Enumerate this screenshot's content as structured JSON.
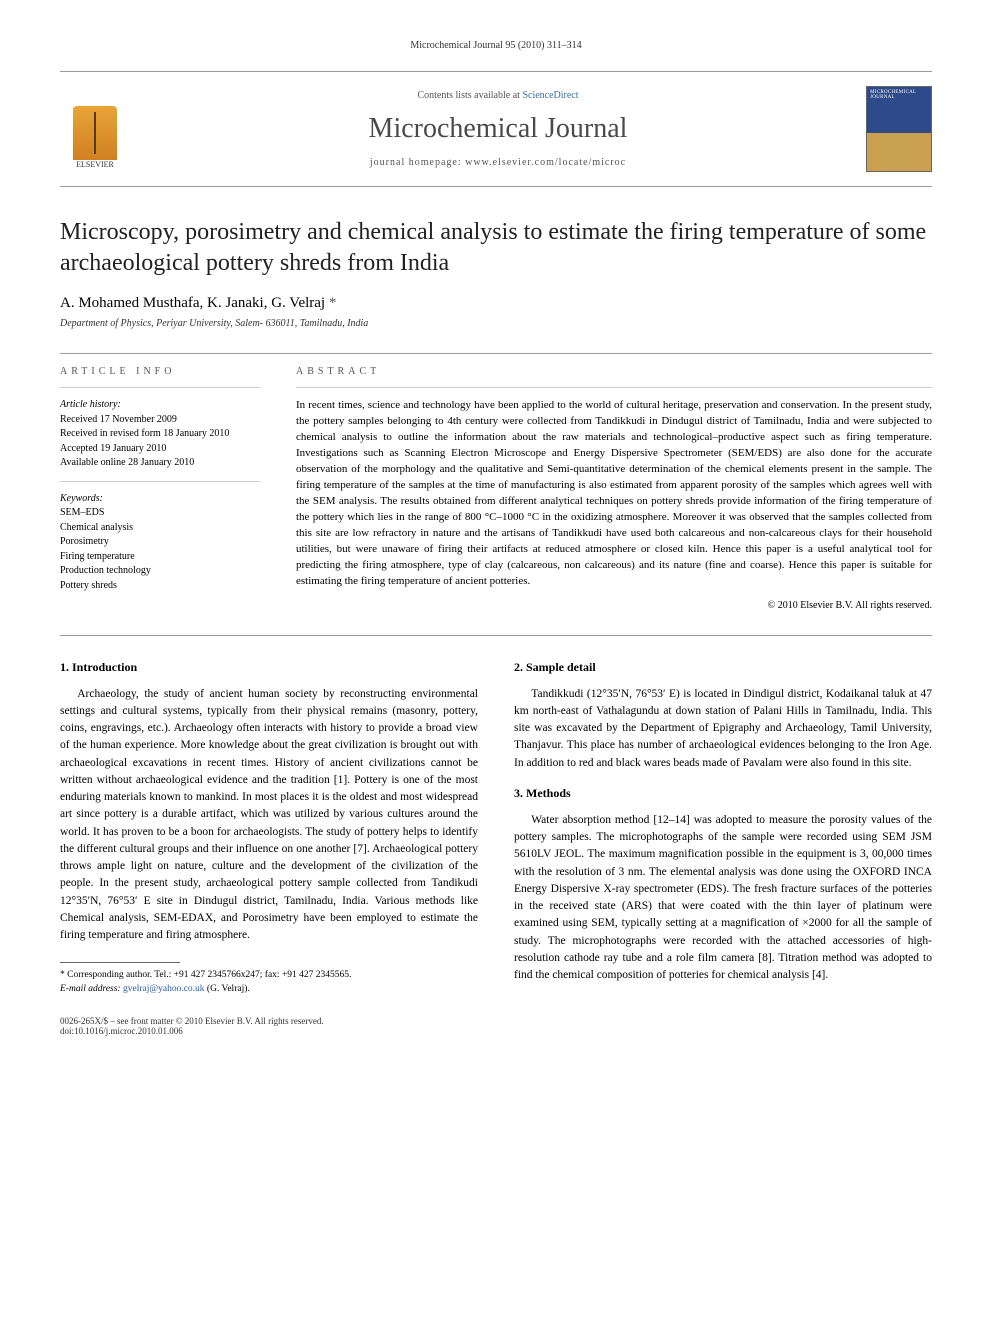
{
  "running_head": "Microchemical Journal 95 (2010) 311–314",
  "masthead": {
    "publisher": "ELSEVIER",
    "contents_prefix": "Contents lists available at ",
    "contents_link": "ScienceDirect",
    "journal": "Microchemical Journal",
    "homepage_prefix": "journal homepage: ",
    "homepage_url": "www.elsevier.com/locate/microc",
    "cover_label": "MICROCHEMICAL JOURNAL"
  },
  "article": {
    "title": "Microscopy, porosimetry and chemical analysis to estimate the firing temperature of some archaeological pottery shreds from India",
    "authors_line": "A. Mohamed Musthafa, K. Janaki, G. Velraj ",
    "corr_marker": "*",
    "affiliation": "Department of Physics, Periyar University, Salem- 636011, Tamilnadu, India"
  },
  "info": {
    "label": "article info",
    "history_head": "Article history:",
    "received": "Received 17 November 2009",
    "revised": "Received in revised form 18 January 2010",
    "accepted": "Accepted 19 January 2010",
    "online": "Available online 28 January 2010",
    "keywords_head": "Keywords:",
    "kw1": "SEM–EDS",
    "kw2": "Chemical analysis",
    "kw3": "Porosimetry",
    "kw4": "Firing temperature",
    "kw5": "Production technology",
    "kw6": "Pottery shreds"
  },
  "abstract": {
    "label": "abstract",
    "text": "In recent times, science and technology have been applied to the world of cultural heritage, preservation and conservation. In the present study, the pottery samples belonging to 4th century were collected from Tandikkudi in Dindugul district of Tamilnadu, India and were subjected to chemical analysis to outline the information about the raw materials and technological–productive aspect such as firing temperature. Investigations such as Scanning Electron Microscope and Energy Dispersive Spectrometer (SEM/EDS) are also done for the accurate observation of the morphology and the qualitative and Semi-quantitative determination of the chemical elements present in the sample. The firing temperature of the samples at the time of manufacturing is also estimated from apparent porosity of the samples which agrees well with the SEM analysis. The results obtained from different analytical techniques on pottery shreds provide information of the firing temperature of the pottery which lies in the range of 800 °C–1000 °C in the oxidizing atmosphere. Moreover it was observed that the samples collected from this site are low refractory in nature and the artisans of Tandikkudi have used both calcareous and non-calcareous clays for their household utilities, but were unaware of firing their artifacts at reduced atmosphere or closed kiln. Hence this paper is a useful analytical tool for predicting the firing atmosphere, type of clay (calcareous, non calcareous) and its nature (fine and coarse). Hence this paper is suitable for estimating the firing temperature of ancient potteries.",
    "copyright": "© 2010 Elsevier B.V. All rights reserved."
  },
  "sections": {
    "s1_head": "1. Introduction",
    "s1_p1": "Archaeology, the study of ancient human society by reconstructing environmental settings and cultural systems, typically from their physical remains (masonry, pottery, coins, engravings, etc.). Archaeology often interacts with history to provide a broad view of the human experience. More knowledge about the great civilization is brought out with archaeological excavations in recent times. History of ancient civilizations cannot be written without archaeological evidence and the tradition [1]. Pottery is one of the most enduring materials known to mankind. In most places it is the oldest and most widespread art since pottery is a durable artifact, which was utilized by various cultures around the world. It has proven to be a boon for archaeologists. The study of pottery helps to identify the different cultural groups and their influence on one another [7]. Archaeological pottery throws ample light on nature, culture and the development of the civilization of the people. In the present study, archaeological pottery sample collected from Tandikudi 12°35′N, 76°53′ E site in Dindugul district, Tamilnadu, India. Various methods like Chemical analysis, SEM-EDAX, and Porosimetry have been employed to estimate the firing temperature and firing atmosphere.",
    "s2_head": "2. Sample detail",
    "s2_p1": "Tandikkudi (12°35′N, 76°53′ E) is located in Dindigul district, Kodaikanal taluk at 47 km north-east of Vathalagundu at down station of Palani Hills in Tamilnadu, India. This site was excavated by the Department of Epigraphy and Archaeology, Tamil University, Thanjavur. This place has number of archaeological evidences belonging to the Iron Age. In addition to red and black wares beads made of Pavalam were also found in this site.",
    "s3_head": "3. Methods",
    "s3_p1": "Water absorption method [12–14] was adopted to measure the porosity values of the pottery samples. The microphotographs of the sample were recorded using SEM JSM 5610LV JEOL. The maximum magnification possible in the equipment is 3, 00,000 times with the resolution of 3 nm. The elemental analysis was done using the OXFORD INCA Energy Dispersive X-ray spectrometer (EDS). The fresh fracture surfaces of the potteries in the received state (ARS) that were coated with the thin layer of platinum were examined using SEM, typically setting at a magnification of ×2000 for all the sample of study. The microphotographs were recorded with the attached accessories of high-resolution cathode ray tube and a role film camera [8]. Titration method was adopted to find the chemical composition of potteries for chemical analysis [4]."
  },
  "footnote": {
    "corr": "* Corresponding author. Tel.: +91 427 2345766x247; fax: +91 427 2345565.",
    "email_label": "E-mail address: ",
    "email": "gvelraj@yahoo.co.uk",
    "email_tail": " (G. Velraj)."
  },
  "footer": {
    "left1": "0026-265X/$ – see front matter © 2010 Elsevier B.V. All rights reserved.",
    "left2": "doi:10.1016/j.microc.2010.01.006"
  },
  "colors": {
    "link": "#2a5db0",
    "rule": "#999999",
    "text": "#000000",
    "muted": "#555555"
  }
}
